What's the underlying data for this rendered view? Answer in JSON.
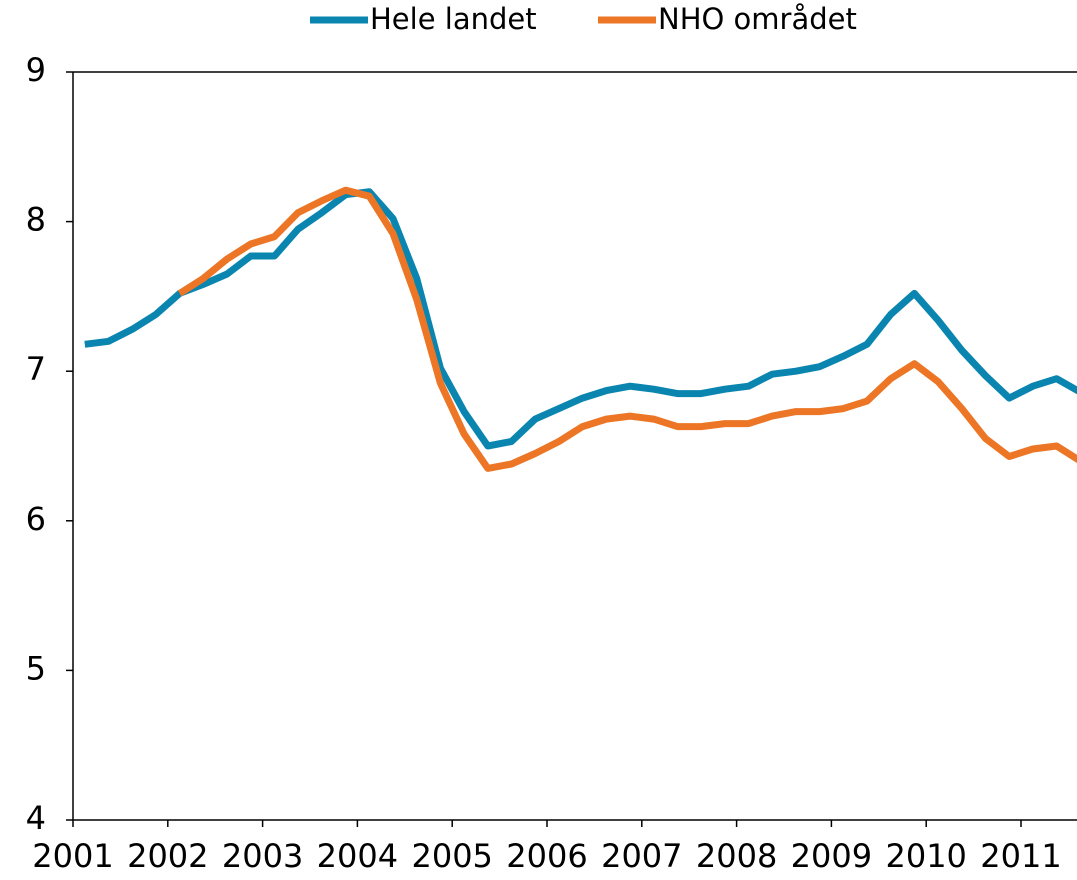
{
  "chart_data": {
    "type": "line",
    "x": [
      2001.125,
      2001.375,
      2001.625,
      2001.875,
      2002.125,
      2002.375,
      2002.625,
      2002.875,
      2003.125,
      2003.375,
      2003.625,
      2003.875,
      2004.125,
      2004.375,
      2004.625,
      2004.875,
      2005.125,
      2005.375,
      2005.625,
      2005.875,
      2006.125,
      2006.375,
      2006.625,
      2006.875,
      2007.125,
      2007.375,
      2007.625,
      2007.875,
      2008.125,
      2008.375,
      2008.625,
      2008.875,
      2009.125,
      2009.375,
      2009.625,
      2009.875,
      2010.125,
      2010.375,
      2010.625,
      2010.875,
      2011.125,
      2011.375,
      2011.625
    ],
    "series": [
      {
        "name": "Hele landet",
        "color": "#0a85b0",
        "values": [
          7.18,
          7.2,
          7.28,
          7.38,
          7.52,
          7.58,
          7.65,
          7.77,
          7.77,
          7.95,
          8.06,
          8.18,
          8.2,
          8.02,
          7.62,
          7.02,
          6.73,
          6.5,
          6.53,
          6.68,
          6.75,
          6.82,
          6.87,
          6.9,
          6.88,
          6.85,
          6.85,
          6.88,
          6.9,
          6.98,
          7.0,
          7.03,
          7.1,
          7.18,
          7.38,
          7.52,
          7.34,
          7.14,
          6.97,
          6.82,
          6.9,
          6.95,
          6.86
        ]
      },
      {
        "name": "NHO området",
        "color": "#ec7625",
        "values": [
          null,
          null,
          null,
          null,
          7.52,
          7.62,
          7.75,
          7.85,
          7.9,
          8.06,
          8.14,
          8.21,
          8.17,
          7.92,
          7.48,
          6.92,
          6.58,
          6.35,
          6.38,
          6.45,
          6.53,
          6.63,
          6.68,
          6.7,
          6.68,
          6.63,
          6.63,
          6.65,
          6.65,
          6.7,
          6.73,
          6.73,
          6.75,
          6.8,
          6.95,
          7.05,
          6.93,
          6.75,
          6.55,
          6.43,
          6.48,
          6.5,
          6.4
        ]
      }
    ],
    "xlim": [
      2001,
      2011.6
    ],
    "xticks": [
      2001,
      2002,
      2003,
      2004,
      2005,
      2006,
      2007,
      2008,
      2009,
      2010,
      2011
    ],
    "ylim": [
      4,
      9
    ],
    "yticks": [
      4,
      5,
      6,
      7,
      8,
      9
    ],
    "legend": "top"
  }
}
